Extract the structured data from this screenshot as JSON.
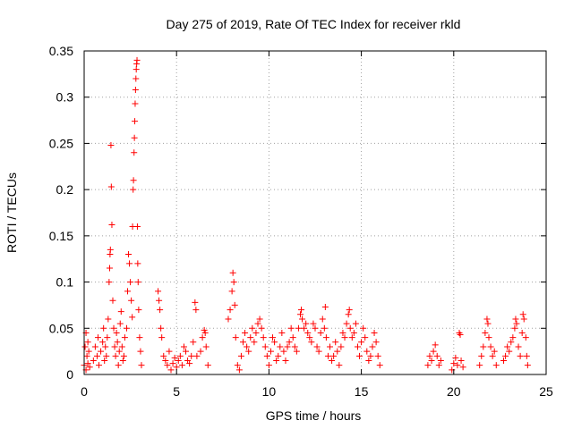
{
  "chart_data": {
    "type": "scatter",
    "title": "Day 275 of 2019, Rate Of TEC Index for receiver rkld",
    "xlabel": "GPS time / hours",
    "ylabel": "ROTI / TECUs",
    "xlim": [
      0,
      25
    ],
    "ylim": [
      0,
      0.35
    ],
    "xticks": [
      0,
      5,
      10,
      15,
      20,
      25
    ],
    "xtick_labels": [
      "0",
      "5",
      "10",
      "15",
      "20",
      "25"
    ],
    "yticks": [
      0,
      0.05,
      0.1,
      0.15,
      0.2,
      0.25,
      0.3,
      0.35
    ],
    "ytick_labels": [
      "0",
      "0.05",
      "0.1",
      "0.15",
      "0.2",
      "0.25",
      "0.3",
      "0.35"
    ],
    "grid": true,
    "marker": "+",
    "color": "#ff0000",
    "series": [
      {
        "name": "ROTI",
        "points": [
          [
            0.0,
            0.01
          ],
          [
            0.05,
            0.03
          ],
          [
            0.1,
            0.045
          ],
          [
            0.1,
            0.005
          ],
          [
            0.15,
            0.02
          ],
          [
            0.2,
            0.035
          ],
          [
            0.2,
            0.012
          ],
          [
            0.25,
            0.025
          ],
          [
            0.3,
            0.008
          ],
          [
            0.5,
            0.015
          ],
          [
            0.6,
            0.03
          ],
          [
            0.7,
            0.02
          ],
          [
            0.75,
            0.04
          ],
          [
            0.8,
            0.01
          ],
          [
            0.9,
            0.025
          ],
          [
            1.0,
            0.035
          ],
          [
            1.05,
            0.05
          ],
          [
            1.1,
            0.015
          ],
          [
            1.15,
            0.03
          ],
          [
            1.2,
            0.02
          ],
          [
            1.25,
            0.04
          ],
          [
            1.3,
            0.06
          ],
          [
            1.35,
            0.1
          ],
          [
            1.38,
            0.115
          ],
          [
            1.4,
            0.13
          ],
          [
            1.42,
            0.135
          ],
          [
            1.45,
            0.248
          ],
          [
            1.47,
            0.203
          ],
          [
            1.5,
            0.162
          ],
          [
            1.55,
            0.08
          ],
          [
            1.6,
            0.05
          ],
          [
            1.65,
            0.03
          ],
          [
            1.7,
            0.02
          ],
          [
            1.75,
            0.045
          ],
          [
            1.8,
            0.035
          ],
          [
            1.85,
            0.01
          ],
          [
            1.9,
            0.025
          ],
          [
            1.95,
            0.055
          ],
          [
            2.0,
            0.068
          ],
          [
            2.05,
            0.03
          ],
          [
            2.1,
            0.015
          ],
          [
            2.15,
            0.02
          ],
          [
            2.2,
            0.04
          ],
          [
            2.3,
            0.05
          ],
          [
            2.35,
            0.09
          ],
          [
            2.4,
            0.13
          ],
          [
            2.45,
            0.12
          ],
          [
            2.5,
            0.1
          ],
          [
            2.55,
            0.08
          ],
          [
            2.6,
            0.062
          ],
          [
            2.62,
            0.16
          ],
          [
            2.65,
            0.2
          ],
          [
            2.67,
            0.21
          ],
          [
            2.7,
            0.24
          ],
          [
            2.72,
            0.256
          ],
          [
            2.74,
            0.274
          ],
          [
            2.76,
            0.293
          ],
          [
            2.78,
            0.308
          ],
          [
            2.8,
            0.32
          ],
          [
            2.82,
            0.33
          ],
          [
            2.84,
            0.336
          ],
          [
            2.86,
            0.34
          ],
          [
            2.88,
            0.16
          ],
          [
            2.9,
            0.12
          ],
          [
            2.92,
            0.1
          ],
          [
            2.95,
            0.07
          ],
          [
            3.0,
            0.04
          ],
          [
            3.05,
            0.025
          ],
          [
            3.1,
            0.01
          ],
          [
            4.0,
            0.09
          ],
          [
            4.05,
            0.08
          ],
          [
            4.1,
            0.07
          ],
          [
            4.15,
            0.05
          ],
          [
            4.2,
            0.04
          ],
          [
            4.3,
            0.02
          ],
          [
            4.4,
            0.015
          ],
          [
            4.5,
            0.01
          ],
          [
            4.6,
            0.025
          ],
          [
            4.7,
            0.005
          ],
          [
            4.8,
            0.012
          ],
          [
            4.9,
            0.018
          ],
          [
            5.0,
            0.008
          ],
          [
            5.1,
            0.015
          ],
          [
            5.2,
            0.02
          ],
          [
            5.3,
            0.01
          ],
          [
            5.4,
            0.03
          ],
          [
            5.5,
            0.025
          ],
          [
            5.6,
            0.015
          ],
          [
            5.7,
            0.012
          ],
          [
            5.8,
            0.02
          ],
          [
            5.9,
            0.035
          ],
          [
            6.0,
            0.078
          ],
          [
            6.05,
            0.07
          ],
          [
            6.1,
            0.02
          ],
          [
            6.3,
            0.025
          ],
          [
            6.4,
            0.04
          ],
          [
            6.5,
            0.048
          ],
          [
            6.55,
            0.045
          ],
          [
            6.6,
            0.03
          ],
          [
            6.7,
            0.01
          ],
          [
            7.8,
            0.06
          ],
          [
            7.9,
            0.07
          ],
          [
            8.0,
            0.09
          ],
          [
            8.05,
            0.11
          ],
          [
            8.1,
            0.1
          ],
          [
            8.15,
            0.075
          ],
          [
            8.2,
            0.04
          ],
          [
            8.3,
            0.01
          ],
          [
            8.4,
            0.005
          ],
          [
            8.5,
            0.02
          ],
          [
            8.6,
            0.035
          ],
          [
            8.7,
            0.045
          ],
          [
            8.8,
            0.03
          ],
          [
            8.9,
            0.025
          ],
          [
            9.0,
            0.04
          ],
          [
            9.1,
            0.05
          ],
          [
            9.2,
            0.035
          ],
          [
            9.3,
            0.045
          ],
          [
            9.4,
            0.055
          ],
          [
            9.5,
            0.06
          ],
          [
            9.6,
            0.05
          ],
          [
            9.7,
            0.04
          ],
          [
            9.8,
            0.03
          ],
          [
            9.9,
            0.02
          ],
          [
            10.0,
            0.01
          ],
          [
            10.1,
            0.025
          ],
          [
            10.2,
            0.04
          ],
          [
            10.3,
            0.035
          ],
          [
            10.4,
            0.015
          ],
          [
            10.5,
            0.02
          ],
          [
            10.6,
            0.03
          ],
          [
            10.7,
            0.045
          ],
          [
            10.8,
            0.025
          ],
          [
            10.9,
            0.015
          ],
          [
            11.0,
            0.03
          ],
          [
            11.1,
            0.035
          ],
          [
            11.2,
            0.05
          ],
          [
            11.3,
            0.04
          ],
          [
            11.4,
            0.03
          ],
          [
            11.5,
            0.025
          ],
          [
            11.6,
            0.05
          ],
          [
            11.7,
            0.065
          ],
          [
            11.75,
            0.07
          ],
          [
            11.8,
            0.06
          ],
          [
            11.9,
            0.05
          ],
          [
            12.0,
            0.055
          ],
          [
            12.1,
            0.045
          ],
          [
            12.2,
            0.04
          ],
          [
            12.3,
            0.035
          ],
          [
            12.4,
            0.055
          ],
          [
            12.5,
            0.05
          ],
          [
            12.6,
            0.03
          ],
          [
            12.7,
            0.025
          ],
          [
            12.8,
            0.045
          ],
          [
            12.9,
            0.06
          ],
          [
            13.0,
            0.05
          ],
          [
            13.05,
            0.073
          ],
          [
            13.1,
            0.04
          ],
          [
            13.2,
            0.02
          ],
          [
            13.3,
            0.03
          ],
          [
            13.4,
            0.015
          ],
          [
            13.5,
            0.02
          ],
          [
            13.6,
            0.035
          ],
          [
            13.7,
            0.025
          ],
          [
            13.8,
            0.01
          ],
          [
            13.9,
            0.03
          ],
          [
            14.0,
            0.045
          ],
          [
            14.1,
            0.04
          ],
          [
            14.2,
            0.055
          ],
          [
            14.3,
            0.065
          ],
          [
            14.35,
            0.07
          ],
          [
            14.4,
            0.05
          ],
          [
            14.5,
            0.04
          ],
          [
            14.6,
            0.045
          ],
          [
            14.7,
            0.055
          ],
          [
            14.8,
            0.03
          ],
          [
            14.9,
            0.02
          ],
          [
            15.0,
            0.035
          ],
          [
            15.1,
            0.05
          ],
          [
            15.2,
            0.04
          ],
          [
            15.3,
            0.025
          ],
          [
            15.4,
            0.015
          ],
          [
            15.5,
            0.02
          ],
          [
            15.6,
            0.03
          ],
          [
            15.7,
            0.045
          ],
          [
            15.8,
            0.035
          ],
          [
            15.9,
            0.02
          ],
          [
            16.0,
            0.01
          ],
          [
            18.6,
            0.01
          ],
          [
            18.7,
            0.02
          ],
          [
            18.8,
            0.015
          ],
          [
            18.9,
            0.025
          ],
          [
            19.0,
            0.032
          ],
          [
            19.1,
            0.02
          ],
          [
            19.2,
            0.01
          ],
          [
            19.3,
            0.015
          ],
          [
            19.9,
            0.005
          ],
          [
            20.0,
            0.012
          ],
          [
            20.1,
            0.018
          ],
          [
            20.2,
            0.01
          ],
          [
            20.3,
            0.045
          ],
          [
            20.35,
            0.043
          ],
          [
            20.4,
            0.015
          ],
          [
            20.5,
            0.008
          ],
          [
            21.4,
            0.01
          ],
          [
            21.5,
            0.02
          ],
          [
            21.6,
            0.03
          ],
          [
            21.7,
            0.045
          ],
          [
            21.8,
            0.06
          ],
          [
            21.85,
            0.055
          ],
          [
            21.9,
            0.04
          ],
          [
            22.0,
            0.03
          ],
          [
            22.1,
            0.02
          ],
          [
            22.2,
            0.025
          ],
          [
            22.3,
            0.01
          ],
          [
            22.7,
            0.015
          ],
          [
            22.8,
            0.02
          ],
          [
            22.9,
            0.03
          ],
          [
            23.0,
            0.025
          ],
          [
            23.1,
            0.035
          ],
          [
            23.2,
            0.04
          ],
          [
            23.3,
            0.05
          ],
          [
            23.35,
            0.06
          ],
          [
            23.4,
            0.055
          ],
          [
            23.5,
            0.03
          ],
          [
            23.6,
            0.02
          ],
          [
            23.7,
            0.045
          ],
          [
            23.75,
            0.065
          ],
          [
            23.8,
            0.06
          ],
          [
            23.9,
            0.04
          ],
          [
            23.95,
            0.02
          ],
          [
            24.0,
            0.01
          ]
        ]
      }
    ]
  }
}
